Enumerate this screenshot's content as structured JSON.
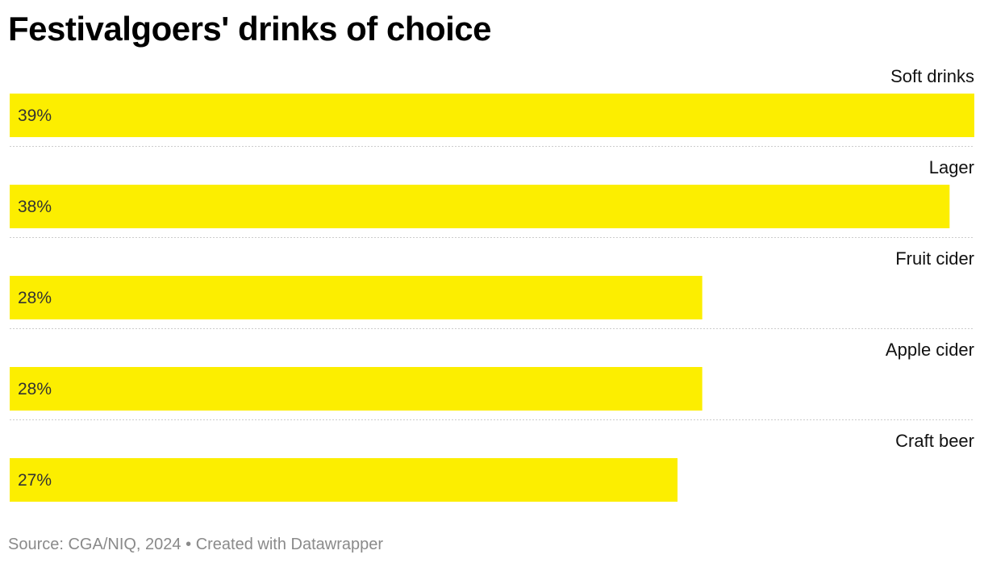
{
  "title": "Festivalgoers' drinks of choice",
  "footer": {
    "source": "Source: CGA/NIQ, 2024",
    "separator": "•",
    "credit": "Created with Datawrapper"
  },
  "colors": {
    "bar": "#FCEE00",
    "separator": "#cccccc"
  },
  "chart_data": {
    "type": "bar",
    "orientation": "horizontal",
    "title": "Festivalgoers' drinks of choice",
    "categories": [
      "Soft drinks",
      "Lager",
      "Fruit cider",
      "Apple cider",
      "Craft beer"
    ],
    "values": [
      39,
      38,
      28,
      28,
      27
    ],
    "value_labels": [
      "39%",
      "38%",
      "28%",
      "28%",
      "27%"
    ],
    "unit": "%",
    "xlim": [
      0,
      39
    ],
    "xlabel": "",
    "ylabel": "",
    "grid": false,
    "legend": "none"
  }
}
